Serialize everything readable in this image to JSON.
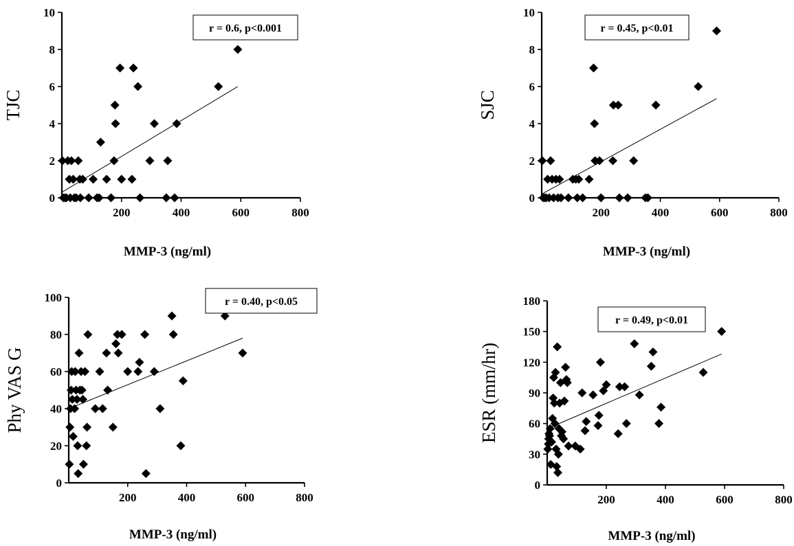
{
  "chart_data": [
    {
      "type": "scatter",
      "xlabel": "MMP-3 (ng/ml)",
      "ylabel": "TJC",
      "xlim": [
        0,
        800
      ],
      "ylim": [
        0,
        10
      ],
      "xticks": [
        200,
        400,
        600,
        800
      ],
      "yticks": [
        0,
        2,
        4,
        6,
        8,
        10
      ],
      "annotation": "r = 0.6, p<0.001",
      "trendline": {
        "x": [
          0,
          590
        ],
        "y": [
          0.3,
          6.0
        ]
      },
      "points": [
        [
          2,
          2
        ],
        [
          5,
          0
        ],
        [
          10,
          0
        ],
        [
          15,
          0
        ],
        [
          20,
          2
        ],
        [
          25,
          1
        ],
        [
          28,
          0
        ],
        [
          32,
          2
        ],
        [
          38,
          1
        ],
        [
          42,
          0
        ],
        [
          48,
          0
        ],
        [
          55,
          2
        ],
        [
          60,
          1
        ],
        [
          62,
          0
        ],
        [
          70,
          1
        ],
        [
          90,
          0
        ],
        [
          105,
          1
        ],
        [
          118,
          0
        ],
        [
          125,
          0
        ],
        [
          130,
          3
        ],
        [
          150,
          1
        ],
        [
          165,
          0
        ],
        [
          175,
          2
        ],
        [
          178,
          5
        ],
        [
          180,
          4
        ],
        [
          195,
          7
        ],
        [
          200,
          1
        ],
        [
          235,
          1
        ],
        [
          240,
          7
        ],
        [
          255,
          6
        ],
        [
          262,
          0
        ],
        [
          295,
          2
        ],
        [
          310,
          4
        ],
        [
          350,
          0
        ],
        [
          355,
          2
        ],
        [
          378,
          0
        ],
        [
          385,
          4
        ],
        [
          525,
          6
        ],
        [
          590,
          8
        ]
      ]
    },
    {
      "type": "scatter",
      "xlabel": "MMP-3 (ng/ml)",
      "ylabel": "SJC",
      "xlim": [
        0,
        800
      ],
      "ylim": [
        0,
        10
      ],
      "xticks": [
        200,
        400,
        600,
        800
      ],
      "yticks": [
        0,
        2,
        4,
        6,
        8,
        10
      ],
      "annotation": "r = 0.45, p<0.01",
      "trendline": {
        "x": [
          0,
          590
        ],
        "y": [
          0.2,
          5.35
        ]
      },
      "points": [
        [
          2,
          2
        ],
        [
          5,
          0
        ],
        [
          10,
          0
        ],
        [
          15,
          0
        ],
        [
          20,
          1
        ],
        [
          25,
          0
        ],
        [
          30,
          2
        ],
        [
          35,
          1
        ],
        [
          40,
          0
        ],
        [
          48,
          1
        ],
        [
          55,
          0
        ],
        [
          60,
          1
        ],
        [
          65,
          0
        ],
        [
          90,
          0
        ],
        [
          105,
          1
        ],
        [
          115,
          1
        ],
        [
          120,
          0
        ],
        [
          125,
          1
        ],
        [
          138,
          0
        ],
        [
          160,
          1
        ],
        [
          175,
          7
        ],
        [
          178,
          4
        ],
        [
          180,
          2
        ],
        [
          195,
          2
        ],
        [
          200,
          0
        ],
        [
          240,
          2
        ],
        [
          242,
          5
        ],
        [
          258,
          5
        ],
        [
          262,
          0
        ],
        [
          290,
          0
        ],
        [
          310,
          2
        ],
        [
          350,
          0
        ],
        [
          358,
          0
        ],
        [
          385,
          5
        ],
        [
          528,
          6
        ],
        [
          590,
          9
        ]
      ]
    },
    {
      "type": "scatter",
      "xlabel": "MMP-3 (ng/ml)",
      "ylabel": "Phy VAS G",
      "xlim": [
        0,
        800
      ],
      "ylim": [
        0,
        100
      ],
      "xticks": [
        200,
        400,
        600,
        800
      ],
      "yticks": [
        0,
        20,
        40,
        60,
        80,
        100
      ],
      "annotation": "r = 0.40, p<0.05",
      "trendline": {
        "x": [
          0,
          590
        ],
        "y": [
          40,
          78
        ]
      },
      "points": [
        [
          2,
          10
        ],
        [
          4,
          30
        ],
        [
          6,
          40
        ],
        [
          8,
          50
        ],
        [
          10,
          60
        ],
        [
          12,
          45
        ],
        [
          15,
          25
        ],
        [
          20,
          40
        ],
        [
          22,
          60
        ],
        [
          25,
          50
        ],
        [
          28,
          45
        ],
        [
          30,
          20
        ],
        [
          32,
          5
        ],
        [
          35,
          70
        ],
        [
          38,
          50
        ],
        [
          42,
          60
        ],
        [
          45,
          50
        ],
        [
          48,
          45
        ],
        [
          50,
          10
        ],
        [
          55,
          60
        ],
        [
          60,
          20
        ],
        [
          62,
          30
        ],
        [
          65,
          80
        ],
        [
          90,
          40
        ],
        [
          105,
          60
        ],
        [
          115,
          40
        ],
        [
          128,
          70
        ],
        [
          132,
          50
        ],
        [
          150,
          30
        ],
        [
          160,
          75
        ],
        [
          165,
          80
        ],
        [
          168,
          70
        ],
        [
          180,
          80
        ],
        [
          200,
          60
        ],
        [
          235,
          60
        ],
        [
          240,
          65
        ],
        [
          258,
          80
        ],
        [
          262,
          5
        ],
        [
          290,
          60
        ],
        [
          310,
          40
        ],
        [
          350,
          90
        ],
        [
          355,
          80
        ],
        [
          380,
          20
        ],
        [
          388,
          55
        ],
        [
          530,
          90
        ],
        [
          590,
          70
        ]
      ]
    },
    {
      "type": "scatter",
      "xlabel": "MMP-3 (ng/ml)",
      "ylabel": "ESR (mm/hr)",
      "xlim": [
        0,
        800
      ],
      "ylim": [
        0,
        180
      ],
      "xticks": [
        200,
        400,
        600,
        800
      ],
      "yticks": [
        0,
        30,
        60,
        90,
        120,
        150,
        180
      ],
      "annotation": "r = 0.49, p<0.01",
      "trendline": {
        "x": [
          0,
          590
        ],
        "y": [
          55,
          128
        ]
      },
      "points": [
        [
          2,
          35
        ],
        [
          4,
          40
        ],
        [
          5,
          45
        ],
        [
          6,
          50
        ],
        [
          8,
          48
        ],
        [
          10,
          55
        ],
        [
          12,
          20
        ],
        [
          15,
          42
        ],
        [
          18,
          65
        ],
        [
          20,
          85
        ],
        [
          22,
          105
        ],
        [
          24,
          80
        ],
        [
          26,
          60
        ],
        [
          28,
          110
        ],
        [
          30,
          35
        ],
        [
          32,
          18
        ],
        [
          34,
          135
        ],
        [
          36,
          12
        ],
        [
          38,
          30
        ],
        [
          40,
          55
        ],
        [
          42,
          80
        ],
        [
          45,
          100
        ],
        [
          48,
          48
        ],
        [
          50,
          52
        ],
        [
          55,
          45
        ],
        [
          58,
          82
        ],
        [
          62,
          115
        ],
        [
          65,
          103
        ],
        [
          68,
          100
        ],
        [
          72,
          38
        ],
        [
          95,
          38
        ],
        [
          112,
          35
        ],
        [
          118,
          90
        ],
        [
          128,
          53
        ],
        [
          132,
          62
        ],
        [
          155,
          88
        ],
        [
          172,
          58
        ],
        [
          175,
          68
        ],
        [
          180,
          120
        ],
        [
          190,
          92
        ],
        [
          200,
          98
        ],
        [
          240,
          50
        ],
        [
          245,
          96
        ],
        [
          262,
          96
        ],
        [
          268,
          60
        ],
        [
          295,
          138
        ],
        [
          312,
          88
        ],
        [
          352,
          116
        ],
        [
          358,
          130
        ],
        [
          378,
          60
        ],
        [
          385,
          76
        ],
        [
          528,
          110
        ],
        [
          590,
          150
        ]
      ]
    }
  ]
}
